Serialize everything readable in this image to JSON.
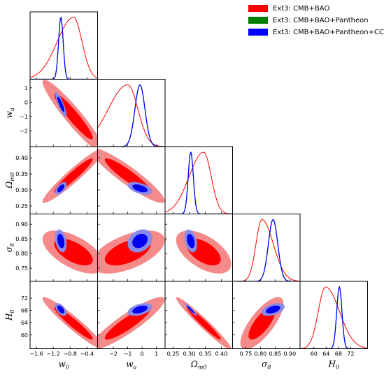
{
  "colors": {
    "red_fill_outer": "#f48a8a",
    "red_fill_inner": "#ff0000",
    "blue_fill_outer": "#8a8ae8",
    "blue_fill_inner": "#0000ee",
    "red_line": "#ff0000",
    "green_line": "#008000",
    "blue_line": "#0000ff"
  },
  "legend": {
    "position": "top-right",
    "items": [
      {
        "label": "Ext3: CMB+BAO",
        "color": "#ff0000"
      },
      {
        "label": "Ext3: CMB+BAO+Pantheon",
        "color": "#008000"
      },
      {
        "label": "Ext3: CMB+BAO+Pantheon+CC",
        "color": "#0000ff"
      }
    ]
  },
  "chart_data": {
    "type": "triangle-corner",
    "parameters": [
      {
        "name": "w0",
        "label": "w",
        "sub": "0",
        "range": [
          -1.75,
          -0.15
        ],
        "ticks": [
          -1.6,
          -1.2,
          -0.8,
          -0.4
        ],
        "tick_labels": [
          "−1.6",
          "−1.2",
          "−0.8",
          "−0.4"
        ]
      },
      {
        "name": "wa",
        "label": "w",
        "sub": "a",
        "range": [
          -3.1,
          1.6
        ],
        "ticks": [
          -2,
          -1,
          0,
          1
        ],
        "tick_labels": [
          "−2",
          "−1",
          "0",
          "1"
        ]
      },
      {
        "name": "Om0",
        "label": "Ω",
        "sub": "m0",
        "range": [
          0.225,
          0.435
        ],
        "ticks": [
          0.25,
          0.3,
          0.35,
          0.4
        ],
        "tick_labels": [
          "0.25",
          "0.30",
          "0.35",
          "0.40"
        ]
      },
      {
        "name": "sigma8",
        "label": "σ",
        "sub": "8",
        "range": [
          0.705,
          0.935
        ],
        "ticks": [
          0.75,
          0.8,
          0.85,
          0.9
        ],
        "tick_labels": [
          "0.75",
          "0.80",
          "0.85",
          "0.90"
        ]
      },
      {
        "name": "H0",
        "label": "H",
        "sub": "0",
        "range": [
          55.5,
          77.5
        ],
        "ticks": [
          60,
          64,
          68,
          72
        ],
        "tick_labels": [
          "60",
          "64",
          "68",
          "72"
        ]
      }
    ],
    "series": [
      {
        "name": "Ext3: CMB+BAO",
        "means": [
          -0.72,
          -1.0,
          0.345,
          0.805,
          63.8
        ],
        "sigmas": [
          0.3,
          1.05,
          0.035,
          0.03,
          3.5
        ],
        "corr": [
          [
            1,
            -0.94,
            0.95,
            -0.6,
            -0.95
          ],
          [
            -0.94,
            1,
            -0.92,
            0.55,
            0.9
          ],
          [
            0.95,
            -0.92,
            1,
            -0.55,
            -0.97
          ],
          [
            -0.6,
            0.55,
            -0.55,
            1,
            0.75
          ],
          [
            -0.95,
            0.9,
            -0.97,
            0.75,
            1
          ]
        ]
      },
      {
        "name": "Ext3: CMB+BAO+Pantheon",
        "means": [
          -1.02,
          -0.15,
          0.305,
          0.843,
          68.3
        ],
        "sigmas": [
          0.055,
          0.35,
          0.008,
          0.016,
          0.85
        ],
        "corr": [
          [
            1,
            -0.85,
            0.6,
            -0.3,
            -0.55
          ],
          [
            -0.85,
            1,
            -0.5,
            0.25,
            0.45
          ],
          [
            0.6,
            -0.5,
            1,
            -0.35,
            -0.95
          ],
          [
            -0.3,
            0.25,
            -0.35,
            1,
            0.45
          ],
          [
            -0.55,
            0.45,
            -0.95,
            0.45,
            1
          ]
        ]
      },
      {
        "name": "Ext3: CMB+BAO+Pantheon+CC",
        "means": [
          -1.02,
          -0.15,
          0.305,
          0.843,
          68.3
        ],
        "sigmas": [
          0.055,
          0.35,
          0.008,
          0.016,
          0.85
        ],
        "corr": [
          [
            1,
            -0.85,
            0.6,
            -0.3,
            -0.55
          ],
          [
            -0.85,
            1,
            -0.5,
            0.25,
            0.45
          ],
          [
            0.6,
            -0.5,
            1,
            -0.35,
            -0.95
          ],
          [
            -0.3,
            0.25,
            -0.35,
            1,
            0.45
          ],
          [
            -0.55,
            0.45,
            -0.95,
            0.45,
            1
          ]
        ]
      }
    ],
    "contour_levels": [
      "68%",
      "95%"
    ]
  }
}
